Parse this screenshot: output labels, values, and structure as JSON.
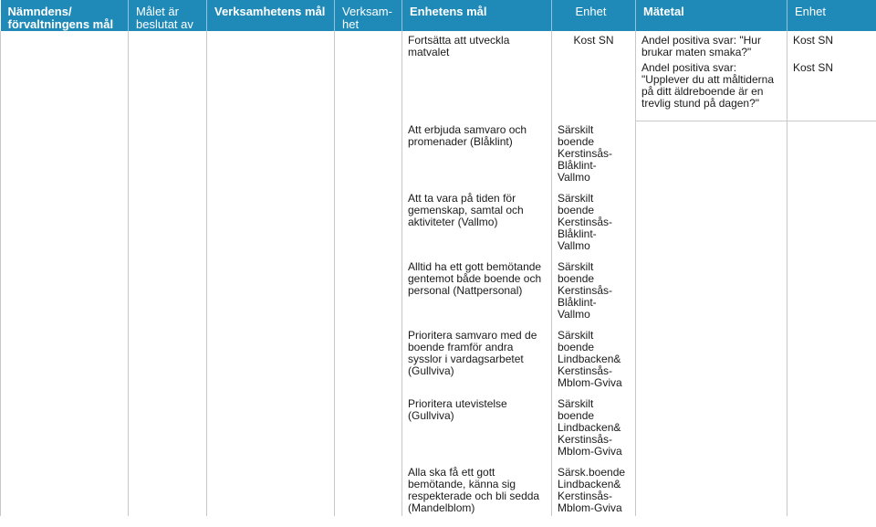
{
  "headers": {
    "col1": "Nämndens/ förvaltningens mål",
    "col2": "Målet är beslutat av",
    "col3": "Verksamhetens mål",
    "col4": "Verksam- het",
    "col5": "Enhetens mål",
    "col6": "Enhet",
    "col7": "Mätetal",
    "col8": "Enhet"
  },
  "rows": [
    {
      "goal": "Fortsätta att utveckla matvalet",
      "unit": "Kost SN",
      "measures": [
        {
          "text": "Andel positiva svar: \"Hur brukar maten smaka?\"",
          "unit": "Kost SN"
        },
        {
          "text": "Andel positiva svar: \"Upplever du att måltiderna på ditt äldreboende är en trevlig stund på dagen?\"",
          "unit": "Kost SN"
        }
      ]
    },
    {
      "goal": "Att erbjuda samvaro och promenader (Blåklint)",
      "unit": "Särskilt boende Kerstinsås- Blåklint- Vallmo"
    },
    {
      "goal": "Att ta vara på tiden för gemenskap, samtal och aktiviteter (Vallmo)",
      "unit": "Särskilt boende Kerstinsås- Blåklint- Vallmo"
    },
    {
      "goal": "Alltid ha ett gott bemötande gentemot både boende och personal (Nattpersonal)",
      "unit": "Särskilt boende Kerstinsås- Blåklint- Vallmo"
    },
    {
      "goal": "Prioritera samvaro med de boende framför andra sysslor i vardagsarbetet (Gullviva)",
      "unit": "Särskilt boende Lindbacken& Kerstinsås- Mblom-Gviva"
    },
    {
      "goal": "Prioritera utevistelse (Gullviva)",
      "unit": "Särskilt boende Lindbacken& Kerstinsås- Mblom-Gviva"
    },
    {
      "goal": "Alla ska få ett gott bemötande, känna sig respekterade och bli sedda (Mandelblom)",
      "unit": "Särsk.boende Lindbacken& Kerstinsås- Mblom-Gviva"
    }
  ]
}
